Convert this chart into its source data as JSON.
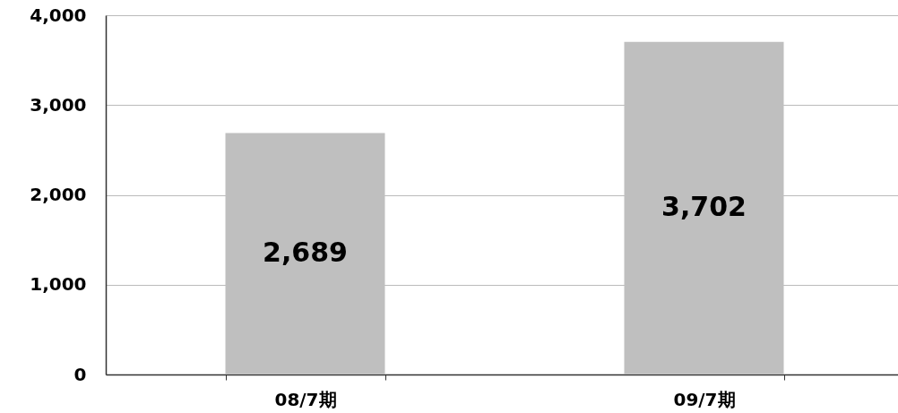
{
  "chart_data": {
    "type": "bar",
    "categories": [
      "08/7期",
      "09/7期"
    ],
    "values": [
      2689,
      3702
    ],
    "value_labels": [
      "2,689",
      "3,702"
    ],
    "color": "#bfbfbf",
    "ylim": [
      0,
      4000
    ],
    "yticks": [
      0,
      {
        "value": 1000,
        "label": "1,000"
      },
      {
        "value": 2000,
        "label": "2,000"
      },
      {
        "value": 3000,
        "label": "3,000"
      },
      {
        "value": 4000,
        "label": "4,000"
      }
    ],
    "grid": "y"
  }
}
